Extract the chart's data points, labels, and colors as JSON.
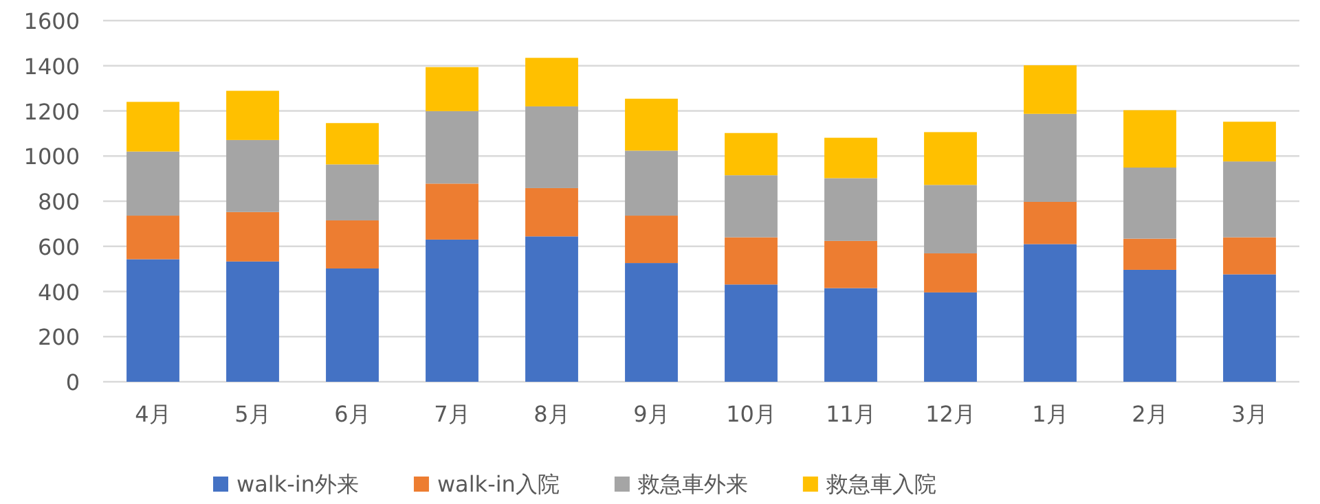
{
  "chart_data": {
    "type": "bar",
    "stacked": true,
    "categories": [
      "4月",
      "5月",
      "6月",
      "7月",
      "8月",
      "9月",
      "10月",
      "11月",
      "12月",
      "1月",
      "2月",
      "3月"
    ],
    "series": [
      {
        "name": "walk-in外来",
        "color": "#4472c4",
        "values": [
          543,
          533,
          502,
          630,
          644,
          526,
          431,
          415,
          396,
          610,
          496,
          476
        ]
      },
      {
        "name": "walk-in入院",
        "color": "#ed7d31",
        "values": [
          193,
          219,
          213,
          248,
          214,
          210,
          209,
          209,
          173,
          187,
          138,
          164
        ]
      },
      {
        "name": "救急車外来",
        "color": "#a5a5a5",
        "values": [
          284,
          319,
          248,
          321,
          362,
          288,
          275,
          278,
          303,
          390,
          315,
          336
        ]
      },
      {
        "name": "救急車入院",
        "color": "#ffc000",
        "values": [
          220,
          218,
          183,
          195,
          215,
          230,
          187,
          179,
          234,
          215,
          254,
          176
        ]
      }
    ],
    "ylim": [
      0,
      1600
    ],
    "yticks": [
      0,
      200,
      400,
      600,
      800,
      1000,
      1200,
      1400,
      1600
    ],
    "grid": "y",
    "legend": "bottom"
  }
}
